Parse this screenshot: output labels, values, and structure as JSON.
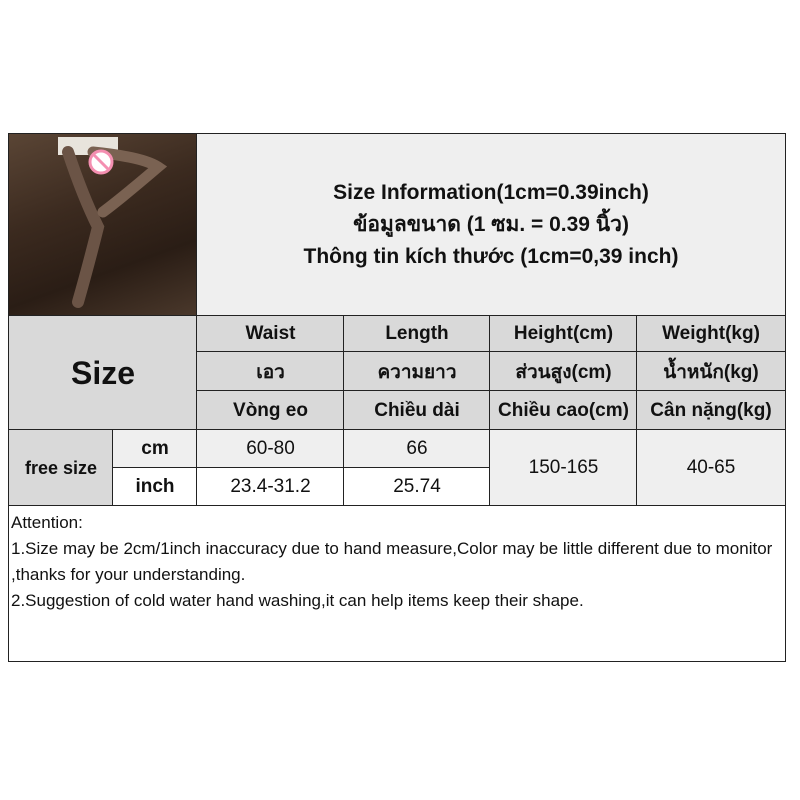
{
  "title": {
    "lines": [
      "Size Information(1cm=0.39inch)",
      "ข้อมูลขนาด (1 ซม. = 0.39 นิ้ว)",
      "Thông tin kích thước (1cm=0,39 inch)"
    ]
  },
  "photo": {
    "description_icon": "product-photo",
    "censor_color": "#f48fb1"
  },
  "table": {
    "size_label": "Size",
    "columns": [
      {
        "en": "Waist",
        "th": "เอว",
        "vi": "Vòng eo"
      },
      {
        "en": "Length",
        "th": "ความยาว",
        "vi": "Chiều dài"
      },
      {
        "en": "Height(cm)",
        "th": "ส่วนสูง(cm)",
        "vi": "Chiều cao(cm)"
      },
      {
        "en": "Weight(kg)",
        "th": "น้ำหนัก(kg)",
        "vi": "Cân nặng(kg)"
      }
    ],
    "row_label": "free size",
    "units": [
      "cm",
      "inch"
    ],
    "cm_values": [
      "60-80",
      "66"
    ],
    "inch_values": [
      "23.4-31.2",
      "25.74"
    ],
    "height": "150-165",
    "weight": "40-65"
  },
  "attention": {
    "lines": [
      "Attention:",
      "1.Size may be 2cm/1inch inaccuracy due to hand measure,Color may be little different due to monitor ,thanks for your understanding.",
      "2.Suggestion of cold water hand washing,it can help items keep their shape."
    ]
  }
}
